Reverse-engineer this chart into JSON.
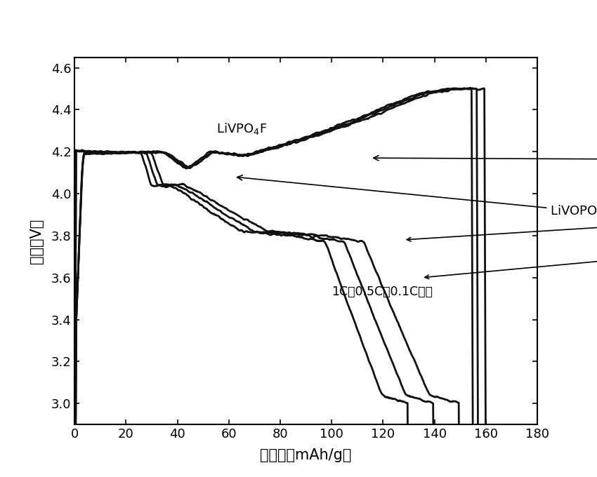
{
  "title": "",
  "xlabel": "比容量（mAh/g）",
  "ylabel": "电压（V）",
  "xlim": [
    0,
    180
  ],
  "ylim": [
    2.9,
    4.65
  ],
  "xticks": [
    0,
    20,
    40,
    60,
    80,
    100,
    120,
    140,
    160,
    180
  ],
  "yticks": [
    3.0,
    3.2,
    3.4,
    3.6,
    3.8,
    4.0,
    4.2,
    4.4,
    4.6
  ],
  "line_color": "#111111",
  "background_color": "#ffffff",
  "figsize": [
    8.5,
    6.8
  ],
  "dpi": 100
}
